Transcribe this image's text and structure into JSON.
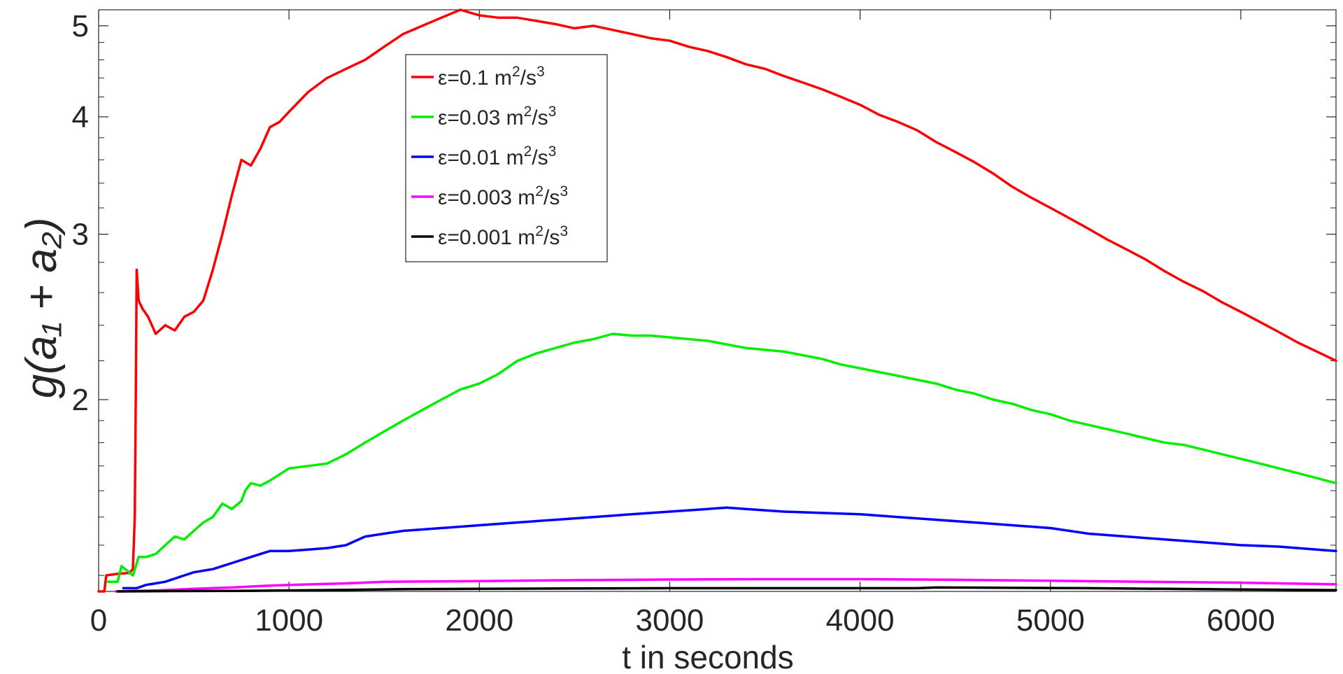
{
  "chart_data": {
    "type": "line",
    "xlabel": "t in seconds",
    "ylabel": "g(a₁ + a₂)",
    "xlim": [
      0,
      6500
    ],
    "ylim": [
      1.25,
      5.2
    ],
    "yscale": "log",
    "grid": false,
    "legend_position": "top-center",
    "x_ticks": [
      0,
      1000,
      2000,
      3000,
      4000,
      5000,
      6000
    ],
    "x_tick_labels": [
      "0",
      "1000",
      "2000",
      "3000",
      "4000",
      "5000",
      "6000"
    ],
    "y_ticks": [
      2,
      3,
      4,
      5
    ],
    "y_tick_labels": [
      "2",
      "3",
      "4",
      "5"
    ],
    "series": [
      {
        "name_prefix": "ε=0.1 m",
        "name_sup1": "2",
        "name_mid": "/s",
        "name_sup2": "3",
        "color": "#ff0000",
        "points": [
          [
            0,
            1.25
          ],
          [
            30,
            1.25
          ],
          [
            40,
            1.3
          ],
          [
            100,
            1.305
          ],
          [
            160,
            1.308
          ],
          [
            180,
            1.32
          ],
          [
            190,
            1.5
          ],
          [
            195,
            2.0
          ],
          [
            200,
            2.75
          ],
          [
            210,
            2.55
          ],
          [
            230,
            2.5
          ],
          [
            260,
            2.45
          ],
          [
            300,
            2.35
          ],
          [
            350,
            2.4
          ],
          [
            400,
            2.37
          ],
          [
            450,
            2.45
          ],
          [
            500,
            2.48
          ],
          [
            550,
            2.55
          ],
          [
            600,
            2.75
          ],
          [
            650,
            3.0
          ],
          [
            700,
            3.3
          ],
          [
            750,
            3.6
          ],
          [
            800,
            3.55
          ],
          [
            850,
            3.7
          ],
          [
            900,
            3.9
          ],
          [
            950,
            3.95
          ],
          [
            1000,
            4.05
          ],
          [
            1100,
            4.25
          ],
          [
            1200,
            4.4
          ],
          [
            1300,
            4.5
          ],
          [
            1400,
            4.6
          ],
          [
            1500,
            4.75
          ],
          [
            1600,
            4.9
          ],
          [
            1700,
            5.0
          ],
          [
            1800,
            5.1
          ],
          [
            1900,
            5.2
          ],
          [
            2000,
            5.13
          ],
          [
            2100,
            5.1
          ],
          [
            2200,
            5.1
          ],
          [
            2300,
            5.06
          ],
          [
            2400,
            5.02
          ],
          [
            2500,
            4.97
          ],
          [
            2600,
            5.0
          ],
          [
            2700,
            4.95
          ],
          [
            2800,
            4.9
          ],
          [
            2900,
            4.85
          ],
          [
            3000,
            4.82
          ],
          [
            3100,
            4.75
          ],
          [
            3200,
            4.7
          ],
          [
            3300,
            4.63
          ],
          [
            3400,
            4.55
          ],
          [
            3500,
            4.5
          ],
          [
            3600,
            4.42
          ],
          [
            3700,
            4.35
          ],
          [
            3800,
            4.28
          ],
          [
            3900,
            4.2
          ],
          [
            4000,
            4.12
          ],
          [
            4100,
            4.02
          ],
          [
            4200,
            3.95
          ],
          [
            4300,
            3.87
          ],
          [
            4400,
            3.76
          ],
          [
            4500,
            3.67
          ],
          [
            4600,
            3.58
          ],
          [
            4700,
            3.48
          ],
          [
            4800,
            3.37
          ],
          [
            4900,
            3.28
          ],
          [
            5000,
            3.2
          ],
          [
            5100,
            3.12
          ],
          [
            5200,
            3.04
          ],
          [
            5300,
            2.96
          ],
          [
            5400,
            2.89
          ],
          [
            5500,
            2.82
          ],
          [
            5600,
            2.74
          ],
          [
            5700,
            2.67
          ],
          [
            5800,
            2.61
          ],
          [
            5900,
            2.54
          ],
          [
            6000,
            2.48
          ],
          [
            6100,
            2.42
          ],
          [
            6200,
            2.36
          ],
          [
            6300,
            2.3
          ],
          [
            6400,
            2.25
          ],
          [
            6500,
            2.2
          ]
        ]
      },
      {
        "name_prefix": "ε=0.03 m",
        "name_sup1": "2",
        "name_mid": "/s",
        "name_sup2": "3",
        "color": "#00ee00",
        "points": [
          [
            50,
            1.28
          ],
          [
            100,
            1.28
          ],
          [
            120,
            1.33
          ],
          [
            140,
            1.32
          ],
          [
            160,
            1.31
          ],
          [
            180,
            1.3
          ],
          [
            210,
            1.36
          ],
          [
            250,
            1.36
          ],
          [
            300,
            1.37
          ],
          [
            350,
            1.4
          ],
          [
            400,
            1.43
          ],
          [
            450,
            1.42
          ],
          [
            500,
            1.45
          ],
          [
            550,
            1.48
          ],
          [
            600,
            1.5
          ],
          [
            650,
            1.55
          ],
          [
            700,
            1.53
          ],
          [
            750,
            1.56
          ],
          [
            770,
            1.6
          ],
          [
            800,
            1.63
          ],
          [
            850,
            1.62
          ],
          [
            900,
            1.64
          ],
          [
            1000,
            1.69
          ],
          [
            1100,
            1.7
          ],
          [
            1200,
            1.71
          ],
          [
            1300,
            1.75
          ],
          [
            1400,
            1.8
          ],
          [
            1500,
            1.85
          ],
          [
            1600,
            1.9
          ],
          [
            1700,
            1.95
          ],
          [
            1800,
            2.0
          ],
          [
            1900,
            2.05
          ],
          [
            2000,
            2.08
          ],
          [
            2100,
            2.13
          ],
          [
            2200,
            2.2
          ],
          [
            2300,
            2.24
          ],
          [
            2400,
            2.27
          ],
          [
            2500,
            2.3
          ],
          [
            2600,
            2.32
          ],
          [
            2700,
            2.35
          ],
          [
            2800,
            2.34
          ],
          [
            2900,
            2.34
          ],
          [
            3000,
            2.33
          ],
          [
            3100,
            2.32
          ],
          [
            3200,
            2.31
          ],
          [
            3300,
            2.29
          ],
          [
            3400,
            2.27
          ],
          [
            3500,
            2.26
          ],
          [
            3600,
            2.25
          ],
          [
            3700,
            2.23
          ],
          [
            3800,
            2.21
          ],
          [
            3900,
            2.18
          ],
          [
            4000,
            2.16
          ],
          [
            4100,
            2.14
          ],
          [
            4200,
            2.12
          ],
          [
            4300,
            2.1
          ],
          [
            4400,
            2.08
          ],
          [
            4500,
            2.05
          ],
          [
            4600,
            2.03
          ],
          [
            4700,
            2.0
          ],
          [
            4800,
            1.98
          ],
          [
            4900,
            1.95
          ],
          [
            5000,
            1.93
          ],
          [
            5100,
            1.9
          ],
          [
            5200,
            1.88
          ],
          [
            5300,
            1.86
          ],
          [
            5400,
            1.84
          ],
          [
            5500,
            1.82
          ],
          [
            5600,
            1.8
          ],
          [
            5700,
            1.79
          ],
          [
            5800,
            1.77
          ],
          [
            5900,
            1.75
          ],
          [
            6000,
            1.73
          ],
          [
            6100,
            1.71
          ],
          [
            6200,
            1.69
          ],
          [
            6300,
            1.67
          ],
          [
            6400,
            1.65
          ],
          [
            6500,
            1.63
          ]
        ]
      },
      {
        "name_prefix": "ε=0.01 m",
        "name_sup1": "2",
        "name_mid": "/s",
        "name_sup2": "3",
        "color": "#0000ff",
        "points": [
          [
            130,
            1.26
          ],
          [
            200,
            1.26
          ],
          [
            250,
            1.27
          ],
          [
            300,
            1.275
          ],
          [
            350,
            1.28
          ],
          [
            400,
            1.29
          ],
          [
            450,
            1.3
          ],
          [
            500,
            1.31
          ],
          [
            550,
            1.315
          ],
          [
            600,
            1.32
          ],
          [
            650,
            1.33
          ],
          [
            700,
            1.34
          ],
          [
            800,
            1.36
          ],
          [
            900,
            1.38
          ],
          [
            1000,
            1.38
          ],
          [
            1100,
            1.385
          ],
          [
            1200,
            1.39
          ],
          [
            1300,
            1.4
          ],
          [
            1400,
            1.43
          ],
          [
            1500,
            1.44
          ],
          [
            1600,
            1.45
          ],
          [
            1800,
            1.46
          ],
          [
            2000,
            1.47
          ],
          [
            2200,
            1.48
          ],
          [
            2400,
            1.49
          ],
          [
            2600,
            1.5
          ],
          [
            2800,
            1.51
          ],
          [
            3000,
            1.52
          ],
          [
            3200,
            1.53
          ],
          [
            3300,
            1.535
          ],
          [
            3400,
            1.53
          ],
          [
            3600,
            1.52
          ],
          [
            3800,
            1.515
          ],
          [
            4000,
            1.51
          ],
          [
            4200,
            1.5
          ],
          [
            4400,
            1.49
          ],
          [
            4600,
            1.48
          ],
          [
            4800,
            1.47
          ],
          [
            5000,
            1.46
          ],
          [
            5200,
            1.44
          ],
          [
            5400,
            1.43
          ],
          [
            5600,
            1.42
          ],
          [
            5800,
            1.41
          ],
          [
            6000,
            1.4
          ],
          [
            6200,
            1.395
          ],
          [
            6400,
            1.385
          ],
          [
            6500,
            1.38
          ]
        ]
      },
      {
        "name_prefix": "ε=0.003 m",
        "name_sup1": "2",
        "name_mid": "/s",
        "name_sup2": "3",
        "color": "#ff00ff",
        "points": [
          [
            90,
            1.25
          ],
          [
            300,
            1.253
          ],
          [
            500,
            1.258
          ],
          [
            700,
            1.262
          ],
          [
            900,
            1.268
          ],
          [
            1000,
            1.27
          ],
          [
            1300,
            1.275
          ],
          [
            1500,
            1.28
          ],
          [
            2000,
            1.282
          ],
          [
            2500,
            1.285
          ],
          [
            3000,
            1.287
          ],
          [
            3500,
            1.288
          ],
          [
            4000,
            1.288
          ],
          [
            4500,
            1.286
          ],
          [
            5000,
            1.283
          ],
          [
            5500,
            1.28
          ],
          [
            6000,
            1.277
          ],
          [
            6500,
            1.272
          ]
        ]
      },
      {
        "name_prefix": "ε=0.001 m",
        "name_sup1": "2",
        "name_mid": "/s",
        "name_sup2": "3",
        "color": "#000000",
        "points": [
          [
            100,
            1.25
          ],
          [
            400,
            1.251
          ],
          [
            800,
            1.252
          ],
          [
            1200,
            1.254
          ],
          [
            1600,
            1.257
          ],
          [
            2000,
            1.258
          ],
          [
            2500,
            1.259
          ],
          [
            3000,
            1.26
          ],
          [
            3500,
            1.26
          ],
          [
            4000,
            1.26
          ],
          [
            4300,
            1.26
          ],
          [
            4400,
            1.262
          ],
          [
            4800,
            1.261
          ],
          [
            5200,
            1.26
          ],
          [
            5600,
            1.258
          ],
          [
            6000,
            1.256
          ],
          [
            6500,
            1.254
          ]
        ]
      }
    ]
  }
}
